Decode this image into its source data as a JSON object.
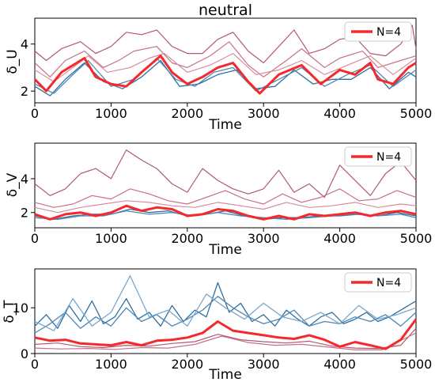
{
  "figure": {
    "title": "neutral"
  },
  "colors": {
    "highlight": "#f5282c",
    "red_family": [
      "#b25871",
      "#c97087",
      "#d88c9c",
      "#e3a7b2",
      "#a24763"
    ],
    "blue_family": [
      "#2f6f9f",
      "#4f87b5",
      "#7aa7cc",
      "#a8c8e1",
      "#c9dcec"
    ]
  },
  "chart_data": [
    {
      "type": "line",
      "panel": "top",
      "ylabel": "δ_U",
      "xlabel": "Time",
      "xlim": [
        0,
        5000
      ],
      "ylim": [
        1.5,
        5.1
      ],
      "xticks": [
        0,
        1000,
        2000,
        3000,
        4000,
        5000
      ],
      "yticks": [
        2,
        4
      ],
      "legend": {
        "label": "N=4",
        "position": "upper right"
      },
      "highlight": {
        "name": "N=4",
        "x": [
          0,
          150,
          350,
          650,
          800,
          1000,
          1200,
          1400,
          1650,
          1800,
          2000,
          2200,
          2400,
          2600,
          2800,
          2950,
          3200,
          3500,
          3750,
          4000,
          4200,
          4400,
          4500,
          4700,
          4900,
          5000
        ],
        "y": [
          2.5,
          2.0,
          2.8,
          3.4,
          2.6,
          2.3,
          2.2,
          2.8,
          3.5,
          2.8,
          2.3,
          2.6,
          3.0,
          3.2,
          2.4,
          1.9,
          2.7,
          3.1,
          2.3,
          2.9,
          2.7,
          3.2,
          2.5,
          2.3,
          3.0,
          3.2
        ]
      },
      "red_series": [
        {
          "x": [
            0,
            150,
            350,
            600,
            800,
            1000,
            1200,
            1400,
            1600,
            1800,
            2000,
            2200,
            2400,
            2600,
            2800,
            3000,
            3200,
            3400,
            3600,
            3800,
            4000,
            4200,
            4400,
            4600,
            4800,
            4950,
            5000
          ],
          "y": [
            3.7,
            3.3,
            3.8,
            4.1,
            3.6,
            3.9,
            4.5,
            4.4,
            4.6,
            3.9,
            3.6,
            3.6,
            4.2,
            4.5,
            3.7,
            3.2,
            3.9,
            4.6,
            3.6,
            3.8,
            4.2,
            4.3,
            3.6,
            3.5,
            4.0,
            4.8,
            3.8
          ]
        },
        {
          "x": [
            0,
            200,
            400,
            650,
            900,
            1100,
            1300,
            1600,
            1800,
            2000,
            2300,
            2550,
            2800,
            3000,
            3300,
            3500,
            3800,
            4000,
            4300,
            4500,
            4800,
            5000
          ],
          "y": [
            3.2,
            2.6,
            3.3,
            3.7,
            3.0,
            3.3,
            3.7,
            3.9,
            3.2,
            3.0,
            3.5,
            4.1,
            3.1,
            2.6,
            3.3,
            3.8,
            3.0,
            3.4,
            3.7,
            3.0,
            3.3,
            3.5
          ]
        },
        {
          "x": [
            0,
            250,
            500,
            700,
            950,
            1250,
            1500,
            1700,
            2000,
            2300,
            2600,
            2900,
            3200,
            3500,
            3800,
            4100,
            4400,
            4700,
            5000
          ],
          "y": [
            2.9,
            2.4,
            3.0,
            3.5,
            2.8,
            3.0,
            3.4,
            3.6,
            2.8,
            3.1,
            3.6,
            2.7,
            2.9,
            3.3,
            2.7,
            3.1,
            3.5,
            2.7,
            3.4
          ]
        }
      ],
      "blue_series": [
        {
          "x": [
            0,
            200,
            400,
            650,
            900,
            1150,
            1400,
            1650,
            1900,
            2150,
            2400,
            2650,
            2900,
            3150,
            3400,
            3650,
            3900,
            4150,
            4400,
            4650,
            4900,
            5000
          ],
          "y": [
            2.2,
            1.8,
            2.5,
            3.2,
            2.4,
            2.1,
            2.6,
            3.3,
            2.2,
            2.3,
            2.7,
            2.9,
            2.1,
            2.2,
            2.9,
            2.3,
            2.5,
            2.5,
            3.0,
            2.1,
            2.8,
            2.6
          ]
        },
        {
          "x": [
            0,
            250,
            500,
            700,
            1000,
            1300,
            1600,
            1850,
            2100,
            2350,
            2600,
            2900,
            3200,
            3500,
            3800,
            4100,
            4400,
            4700,
            5000
          ],
          "y": [
            2.3,
            1.9,
            2.7,
            3.3,
            2.2,
            2.5,
            3.4,
            2.5,
            2.2,
            2.8,
            3.0,
            2.0,
            2.5,
            3.0,
            2.2,
            2.7,
            3.1,
            2.2,
            2.9
          ]
        }
      ]
    },
    {
      "type": "line",
      "panel": "middle",
      "ylabel": "δ_V",
      "xlabel": "Time",
      "xlim": [
        0,
        5000
      ],
      "ylim": [
        1.1,
        6.1
      ],
      "xticks": [
        0,
        1000,
        2000,
        3000,
        4000,
        5000
      ],
      "yticks": [
        2,
        4
      ],
      "legend": {
        "label": "N=4",
        "position": "upper right"
      },
      "highlight": {
        "name": "N=4",
        "x": [
          0,
          200,
          400,
          600,
          800,
          1000,
          1200,
          1400,
          1600,
          1800,
          2000,
          2200,
          2400,
          2600,
          2800,
          3000,
          3200,
          3400,
          3600,
          3800,
          4000,
          4200,
          4400,
          4600,
          4800,
          5000
        ],
        "y": [
          1.9,
          1.6,
          1.9,
          2.0,
          1.8,
          2.0,
          2.4,
          2.1,
          2.3,
          2.2,
          1.8,
          1.9,
          2.2,
          2.1,
          1.8,
          1.6,
          1.8,
          1.6,
          1.9,
          1.8,
          1.9,
          2.0,
          1.8,
          2.0,
          2.1,
          1.9
        ]
      },
      "red_series": [
        {
          "x": [
            0,
            200,
            400,
            600,
            800,
            1000,
            1200,
            1400,
            1600,
            1800,
            2000,
            2200,
            2400,
            2600,
            2800,
            3000,
            3200,
            3400,
            3600,
            3800,
            4000,
            4200,
            4400,
            4600,
            4800,
            5000
          ],
          "y": [
            3.7,
            3.0,
            3.4,
            4.3,
            4.6,
            4.0,
            5.7,
            5.1,
            4.6,
            3.7,
            3.2,
            4.6,
            3.9,
            3.4,
            3.1,
            3.4,
            4.5,
            3.2,
            3.7,
            2.9,
            4.8,
            3.9,
            3.0,
            4.3,
            5.0,
            3.9
          ]
        },
        {
          "x": [
            0,
            250,
            500,
            750,
            1000,
            1250,
            1500,
            1750,
            2000,
            2250,
            2500,
            2750,
            3000,
            3250,
            3500,
            3750,
            4000,
            4250,
            4500,
            4750,
            5000
          ],
          "y": [
            2.6,
            2.3,
            2.5,
            3.0,
            2.8,
            3.4,
            3.1,
            2.7,
            2.5,
            2.9,
            3.3,
            2.8,
            2.5,
            3.1,
            2.6,
            2.9,
            3.4,
            2.7,
            2.8,
            3.3,
            2.9
          ]
        },
        {
          "x": [
            0,
            300,
            600,
            900,
            1200,
            1500,
            1800,
            2100,
            2400,
            2700,
            3000,
            3300,
            3600,
            3900,
            4200,
            4500,
            4800,
            5000
          ],
          "y": [
            2.3,
            2.0,
            2.3,
            2.5,
            2.7,
            2.6,
            2.4,
            2.3,
            2.6,
            2.4,
            2.2,
            2.6,
            2.3,
            2.4,
            2.6,
            2.3,
            2.5,
            2.4
          ]
        }
      ],
      "blue_series": [
        {
          "x": [
            0,
            250,
            500,
            750,
            1000,
            1250,
            1500,
            1750,
            2000,
            2250,
            2500,
            2750,
            3000,
            3250,
            3500,
            3750,
            4000,
            4250,
            4500,
            4750,
            5000
          ],
          "y": [
            1.8,
            1.6,
            1.8,
            1.9,
            1.9,
            2.2,
            2.0,
            2.1,
            1.8,
            1.9,
            2.1,
            1.8,
            1.6,
            1.7,
            1.7,
            1.8,
            1.8,
            1.9,
            1.8,
            2.0,
            1.8
          ]
        },
        {
          "x": [
            0,
            300,
            600,
            900,
            1200,
            1500,
            1800,
            2100,
            2400,
            2700,
            3000,
            3300,
            3600,
            3900,
            4200,
            4500,
            4800,
            5000
          ],
          "y": [
            1.7,
            1.6,
            1.8,
            1.8,
            2.1,
            1.9,
            2.0,
            1.8,
            2.0,
            1.8,
            1.7,
            1.6,
            1.7,
            1.8,
            1.9,
            1.8,
            1.9,
            1.7
          ]
        }
      ]
    },
    {
      "type": "line",
      "panel": "bottom",
      "ylabel": "δ_T",
      "xlabel": "Time",
      "xlim": [
        0,
        5000
      ],
      "ylim": [
        0,
        18.5
      ],
      "xticks": [
        0,
        1000,
        2000,
        3000,
        4000,
        5000
      ],
      "yticks": [
        0,
        10
      ],
      "legend": {
        "label": "N=4",
        "position": "upper right"
      },
      "highlight": {
        "name": "N=4",
        "x": [
          0,
          200,
          400,
          600,
          800,
          1000,
          1200,
          1400,
          1600,
          1800,
          2000,
          2200,
          2400,
          2600,
          2800,
          3000,
          3200,
          3400,
          3600,
          3800,
          4000,
          4200,
          4400,
          4600,
          4800,
          5000
        ],
        "y": [
          3.5,
          2.8,
          3.0,
          2.2,
          2.0,
          1.8,
          2.5,
          1.8,
          2.8,
          3.0,
          3.5,
          4.5,
          7.0,
          5.0,
          4.5,
          4.0,
          3.5,
          3.2,
          4.0,
          3.0,
          1.5,
          2.5,
          1.8,
          1.0,
          3.0,
          7.5
        ]
      },
      "red_series": [
        {
          "x": [
            0,
            300,
            600,
            900,
            1200,
            1500,
            1800,
            2100,
            2400,
            2700,
            3000,
            3300,
            3600,
            3900,
            4200,
            4500,
            4800,
            5000
          ],
          "y": [
            2.0,
            2.3,
            1.5,
            1.3,
            1.8,
            1.6,
            2.2,
            2.6,
            4.2,
            3.0,
            2.6,
            2.3,
            2.7,
            1.6,
            1.2,
            1.1,
            1.8,
            5.5
          ]
        },
        {
          "x": [
            0,
            350,
            700,
            1050,
            1400,
            1750,
            2100,
            2450,
            2800,
            3150,
            3500,
            3850,
            4200,
            4550,
            5000
          ],
          "y": [
            1.2,
            1.0,
            1.1,
            0.9,
            1.3,
            1.2,
            2.0,
            3.8,
            2.4,
            1.8,
            2.0,
            1.4,
            0.8,
            0.8,
            4.5
          ]
        }
      ],
      "blue_series": [
        {
          "x": [
            0,
            150,
            300,
            450,
            600,
            750,
            900,
            1050,
            1200,
            1350,
            1500,
            1650,
            1800,
            1950,
            2100,
            2250,
            2400,
            2550,
            2700,
            2850,
            3000,
            3150,
            3300,
            3450,
            3600,
            3750,
            3900,
            4050,
            4200,
            4350,
            4500,
            4650,
            4800,
            5000
          ],
          "y": [
            6.0,
            8.5,
            5.5,
            10.5,
            7.0,
            11.5,
            6.5,
            8.0,
            12.0,
            7.5,
            9.0,
            6.0,
            10.5,
            7.0,
            9.5,
            8.0,
            15.5,
            9.0,
            11.0,
            7.0,
            8.5,
            6.0,
            9.5,
            7.5,
            6.0,
            8.0,
            9.0,
            6.5,
            7.5,
            9.0,
            7.0,
            8.0,
            9.5,
            11.5
          ]
        },
        {
          "x": [
            0,
            200,
            400,
            600,
            800,
            1000,
            1200,
            1400,
            1600,
            1800,
            2000,
            2200,
            2400,
            2600,
            2800,
            3000,
            3200,
            3400,
            3600,
            3800,
            4000,
            4200,
            4400,
            4600,
            4800,
            5000
          ],
          "y": [
            4.5,
            6.5,
            9.0,
            5.5,
            8.0,
            6.0,
            10.0,
            7.0,
            8.5,
            6.0,
            7.5,
            9.5,
            12.5,
            10.0,
            8.0,
            6.5,
            7.5,
            9.5,
            6.0,
            7.0,
            6.5,
            8.0,
            7.0,
            8.5,
            6.0,
            9.0
          ]
        },
        {
          "x": [
            0,
            250,
            500,
            750,
            1000,
            1250,
            1500,
            1750,
            2000,
            2250,
            2500,
            2750,
            3000,
            3250,
            3500,
            3750,
            4000,
            4250,
            4500,
            4750,
            5000
          ],
          "y": [
            7.0,
            5.0,
            12.0,
            6.0,
            9.0,
            17.0,
            8.0,
            9.5,
            6.0,
            13.0,
            10.0,
            7.5,
            11.0,
            8.0,
            7.0,
            9.0,
            6.5,
            10.5,
            7.5,
            8.5,
            10.0
          ]
        }
      ]
    }
  ]
}
